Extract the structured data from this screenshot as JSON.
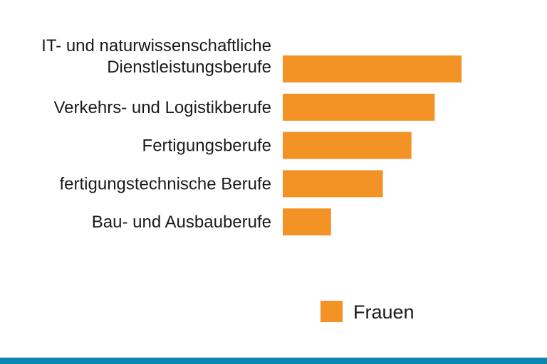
{
  "chart_data": {
    "type": "bar",
    "orientation": "horizontal",
    "categories": [
      [
        "IT- und naturwissenschaftliche",
        "Dienstleistungsberufe"
      ],
      [
        "Verkehrs- und Logistikberufe"
      ],
      [
        "Fertigungsberufe"
      ],
      [
        "fertigungstechnische Berufe"
      ],
      [
        "Bau- und Ausbauberufe"
      ]
    ],
    "series": [
      {
        "name": "Frauen",
        "values": [
          1.0,
          0.85,
          0.72,
          0.56,
          0.27
        ],
        "color": "#f39325"
      }
    ],
    "value_scale": "relative (no axis printed)",
    "xlim": [
      0,
      1
    ],
    "grid": false,
    "legend_position": "bottom-right"
  },
  "colors": {
    "bar": "#f39325",
    "bottom_stripe": "#0a86b0",
    "text": "#1a1a1a"
  }
}
